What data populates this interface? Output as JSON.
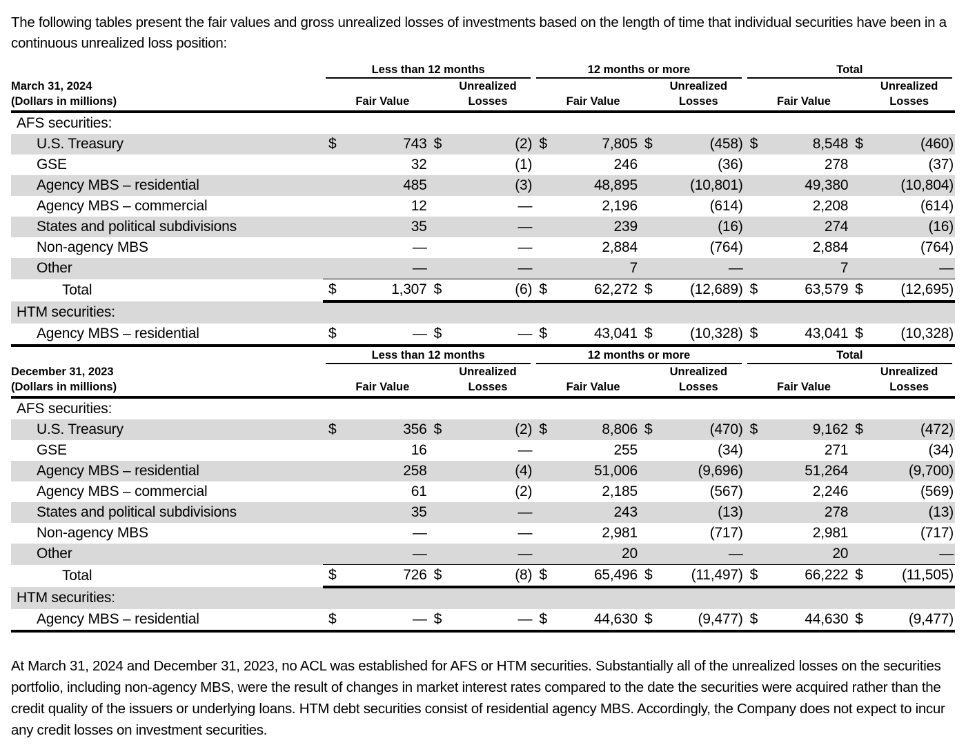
{
  "intro": "The following tables present the fair values and gross unrealized losses of investments based on the length of time that individual securities have been in a continuous unrealized loss position:",
  "tables": [
    {
      "date": "March 31, 2024",
      "units": "(Dollars in millions)",
      "currency_symbol": "$",
      "groups": [
        "Less than 12 months",
        "12 months or more",
        "Total"
      ],
      "columns": [
        "Fair Value",
        "Unrealized Losses"
      ],
      "sections": [
        {
          "title": "AFS securities:",
          "rows": [
            {
              "label": "U.S. Treasury",
              "cells": [
                "743",
                "(2)",
                "7,805",
                "(458)",
                "8,548",
                "(460)"
              ]
            },
            {
              "label": "GSE",
              "cells": [
                "32",
                "(1)",
                "246",
                "(36)",
                "278",
                "(37)"
              ]
            },
            {
              "label": "Agency MBS – residential",
              "cells": [
                "485",
                "(3)",
                "48,895",
                "(10,801)",
                "49,380",
                "(10,804)"
              ]
            },
            {
              "label": "Agency MBS – commercial",
              "cells": [
                "12",
                "—",
                "2,196",
                "(614)",
                "2,208",
                "(614)"
              ]
            },
            {
              "label": "States and political subdivisions",
              "cells": [
                "35",
                "—",
                "239",
                "(16)",
                "274",
                "(16)"
              ]
            },
            {
              "label": "Non-agency MBS",
              "cells": [
                "—",
                "—",
                "2,884",
                "(764)",
                "2,884",
                "(764)"
              ]
            },
            {
              "label": "Other",
              "cells": [
                "—",
                "—",
                "7",
                "—",
                "7",
                "—"
              ]
            }
          ],
          "total": {
            "label": "Total",
            "cells": [
              "1,307",
              "(6)",
              "62,272",
              "(12,689)",
              "63,579",
              "(12,695)"
            ]
          }
        },
        {
          "title": "HTM securities:",
          "rows": [
            {
              "label": "Agency MBS – residential",
              "cells": [
                "—",
                "—",
                "43,041",
                "(10,328)",
                "43,041",
                "(10,328)"
              ]
            }
          ]
        }
      ]
    },
    {
      "date": "December 31, 2023",
      "units": "(Dollars in millions)",
      "currency_symbol": "$",
      "groups": [
        "Less than 12 months",
        "12 months or more",
        "Total"
      ],
      "columns": [
        "Fair Value",
        "Unrealized Losses"
      ],
      "sections": [
        {
          "title": "AFS securities:",
          "rows": [
            {
              "label": "U.S. Treasury",
              "cells": [
                "356",
                "(2)",
                "8,806",
                "(470)",
                "9,162",
                "(472)"
              ]
            },
            {
              "label": "GSE",
              "cells": [
                "16",
                "—",
                "255",
                "(34)",
                "271",
                "(34)"
              ]
            },
            {
              "label": "Agency MBS – residential",
              "cells": [
                "258",
                "(4)",
                "51,006",
                "(9,696)",
                "51,264",
                "(9,700)"
              ]
            },
            {
              "label": "Agency MBS – commercial",
              "cells": [
                "61",
                "(2)",
                "2,185",
                "(567)",
                "2,246",
                "(569)"
              ]
            },
            {
              "label": "States and political subdivisions",
              "cells": [
                "35",
                "—",
                "243",
                "(13)",
                "278",
                "(13)"
              ]
            },
            {
              "label": "Non-agency MBS",
              "cells": [
                "—",
                "—",
                "2,981",
                "(717)",
                "2,981",
                "(717)"
              ]
            },
            {
              "label": "Other",
              "cells": [
                "—",
                "—",
                "20",
                "—",
                "20",
                "—"
              ]
            }
          ],
          "total": {
            "label": "Total",
            "cells": [
              "726",
              "(8)",
              "65,496",
              "(11,497)",
              "66,222",
              "(11,505)"
            ]
          }
        },
        {
          "title": "HTM securities:",
          "rows": [
            {
              "label": "Agency MBS – residential",
              "cells": [
                "—",
                "—",
                "44,630",
                "(9,477)",
                "44,630",
                "(9,477)"
              ]
            }
          ]
        }
      ]
    }
  ],
  "footer": "At March 31, 2024 and December 31, 2023, no ACL was established for AFS or HTM securities. Substantially all of the unrealized losses on the securities portfolio, including non-agency MBS, were the result of changes in market interest rates compared to the date the securities were acquired rather than the credit quality of the issuers or underlying loans. HTM debt securities consist of residential agency MBS. Accordingly, the Company does not expect to incur any credit losses on investment securities."
}
